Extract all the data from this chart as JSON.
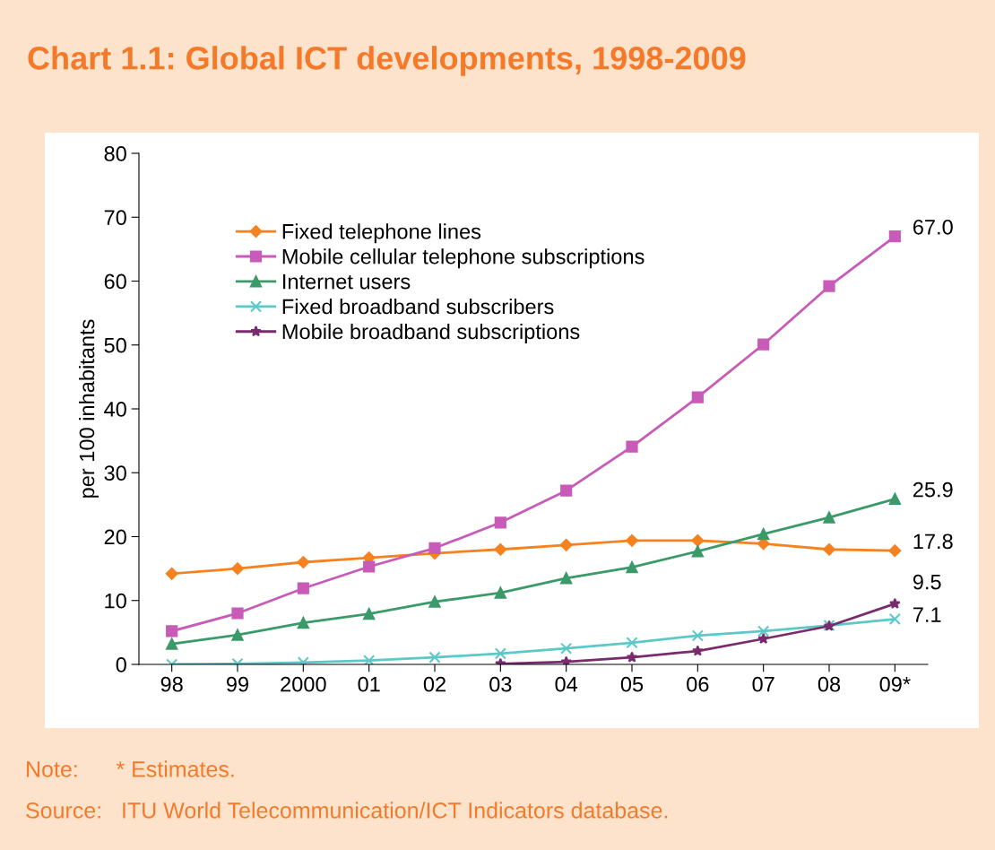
{
  "chart_data": {
    "type": "line",
    "title": "Chart 1.1: Global ICT developments, 1998-2009",
    "ylabel": "per 100 inhabitants",
    "categories": [
      "98",
      "99",
      "2000",
      "01",
      "02",
      "03",
      "04",
      "05",
      "06",
      "07",
      "08",
      "09*"
    ],
    "ylim": [
      0,
      80
    ],
    "yticks": [
      0,
      10,
      20,
      30,
      40,
      50,
      60,
      70,
      80
    ],
    "grid": false,
    "legend": "top left",
    "series": [
      {
        "name": "Fixed telephone lines",
        "color": "#f58220",
        "marker": "diamond",
        "values": [
          14.2,
          15.0,
          16.0,
          16.7,
          17.4,
          18.0,
          18.7,
          19.4,
          19.4,
          18.9,
          18.0,
          17.8
        ],
        "value_labels": [
          null,
          null,
          null,
          null,
          null,
          null,
          null,
          null,
          null,
          null,
          null,
          "17.8"
        ]
      },
      {
        "name": "Mobile cellular telephone subscriptions",
        "color": "#c85ab8",
        "marker": "square",
        "values": [
          5.2,
          8.0,
          11.9,
          15.3,
          18.2,
          22.2,
          27.2,
          34.1,
          41.8,
          50.1,
          59.2,
          67.0
        ],
        "value_labels": [
          null,
          null,
          null,
          null,
          null,
          null,
          null,
          null,
          null,
          null,
          null,
          "67.0"
        ]
      },
      {
        "name": "Internet users",
        "color": "#3a9a6a",
        "marker": "triangle",
        "values": [
          3.2,
          4.6,
          6.5,
          7.9,
          9.8,
          11.2,
          13.5,
          15.2,
          17.7,
          20.4,
          23.0,
          25.9
        ],
        "value_labels": [
          null,
          null,
          null,
          null,
          null,
          null,
          null,
          null,
          null,
          null,
          null,
          "25.9"
        ]
      },
      {
        "name": "Fixed broadband subscribers",
        "color": "#5cc8c8",
        "marker": "cross",
        "values": [
          0.0,
          0.1,
          0.3,
          0.6,
          1.1,
          1.7,
          2.5,
          3.4,
          4.5,
          5.2,
          6.1,
          7.1
        ],
        "value_labels": [
          null,
          null,
          null,
          null,
          null,
          null,
          null,
          null,
          null,
          null,
          null,
          "7.1"
        ]
      },
      {
        "name": "Mobile broadband subscriptions",
        "color": "#7a2b6e",
        "marker": "star",
        "values": [
          null,
          null,
          null,
          null,
          null,
          0.1,
          0.4,
          1.1,
          2.1,
          4.0,
          6.0,
          9.5
        ],
        "value_labels": [
          null,
          null,
          null,
          null,
          null,
          null,
          null,
          null,
          null,
          null,
          null,
          "9.5"
        ]
      }
    ],
    "annotations": [
      "Note:      * Estimates.",
      "Source:   ITU World Telecommunication/ICT Indicators database."
    ]
  }
}
